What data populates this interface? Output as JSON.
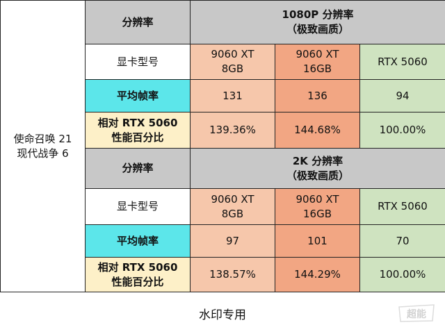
{
  "game": {
    "line1": "使命召唤 21",
    "line2": "现代战争 6"
  },
  "sections": [
    {
      "resolution_label": "分辨率",
      "heading_line1": "1080P 分辨率",
      "heading_line2": "（极致画质）",
      "gpu_row_label": "显卡型号",
      "gpus": [
        {
          "line1": "9060 XT",
          "line2": "8GB"
        },
        {
          "line1": "9060 XT",
          "line2": "16GB"
        },
        {
          "line1": "RTX 5060",
          "line2": ""
        }
      ],
      "fps_label": "平均帧率",
      "fps": [
        "131",
        "136",
        "94"
      ],
      "rel_label_line1": "相对 RTX 5060",
      "rel_label_line2": "性能百分比",
      "rel": [
        "139.36%",
        "144.68%",
        "100.00%"
      ]
    },
    {
      "resolution_label": "分辨率",
      "heading_line1": "2K 分辨率",
      "heading_line2": "（极致画质）",
      "gpu_row_label": "显卡型号",
      "gpus": [
        {
          "line1": "9060 XT",
          "line2": "8GB"
        },
        {
          "line1": "9060 XT",
          "line2": "16GB"
        },
        {
          "line1": "RTX 5060",
          "line2": ""
        }
      ],
      "fps_label": "平均帧率",
      "fps": [
        "97",
        "101",
        "70"
      ],
      "rel_label_line1": "相对 RTX 5060",
      "rel_label_line2": "性能百分比",
      "rel": [
        "138.57%",
        "144.29%",
        "100.00%"
      ]
    }
  ],
  "footer": {
    "watermark": "水印专用"
  },
  "logo": {
    "text": "超能"
  },
  "colors": {
    "header_gray": "#c8c8c8",
    "fps_cyan": "#5ce6ea",
    "rel_cream": "#fdf0c8",
    "gpu1_peach": "#f6c7ab",
    "gpu2_salmon": "#f2a683",
    "gpu3_green": "#cfe3c0"
  }
}
